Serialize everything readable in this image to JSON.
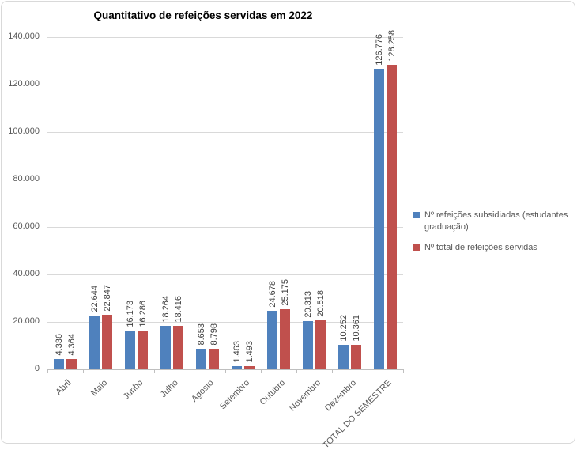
{
  "chart_data": {
    "type": "bar",
    "title": "Quantitativo de refeições servidas em 2022",
    "categories": [
      "Abril",
      "Maio",
      "Junho",
      "Julho",
      "Agosto",
      "Setembro",
      "Outubro",
      "Novembro",
      "Dezembro",
      "TOTAL DO SEMESTRE"
    ],
    "series": [
      {
        "name": "Nº refeições subsidiadas (estudantes graduação)",
        "color": "#4F81BD",
        "values": [
          4336,
          22644,
          16173,
          18264,
          8653,
          1463,
          24678,
          20313,
          10252,
          126776
        ],
        "labels": [
          "4.336",
          "22.644",
          "16.173",
          "18.264",
          "8.653",
          "1.463",
          "24.678",
          "20.313",
          "10.252",
          "126.776"
        ]
      },
      {
        "name": "Nº total de refeições servidas",
        "color": "#C0504D",
        "values": [
          4364,
          22847,
          16286,
          18416,
          8798,
          1493,
          25175,
          20518,
          10361,
          128258
        ],
        "labels": [
          "4.364",
          "22.847",
          "16.286",
          "18.416",
          "8.798",
          "1.493",
          "25.175",
          "20.518",
          "10.361",
          "128.258"
        ]
      }
    ],
    "y_axis": {
      "min": 0,
      "max": 140000,
      "step": 20000,
      "tick_labels": [
        "0",
        "20.000",
        "40.000",
        "60.000",
        "80.000",
        "100.000",
        "120.000",
        "140.000"
      ]
    },
    "grid": true,
    "legend_position": "right",
    "data_labels": "rotated-vertical",
    "x_labels_rotation": -45,
    "palette": {
      "gridline": "#D9D9D9",
      "axis_line": "#BFBFBF",
      "axis_text": "#595959",
      "data_label_text": "#3F3F3F",
      "title_text": "#000000",
      "frame_border": "#D9D9D9",
      "background": "#FFFFFF"
    }
  }
}
